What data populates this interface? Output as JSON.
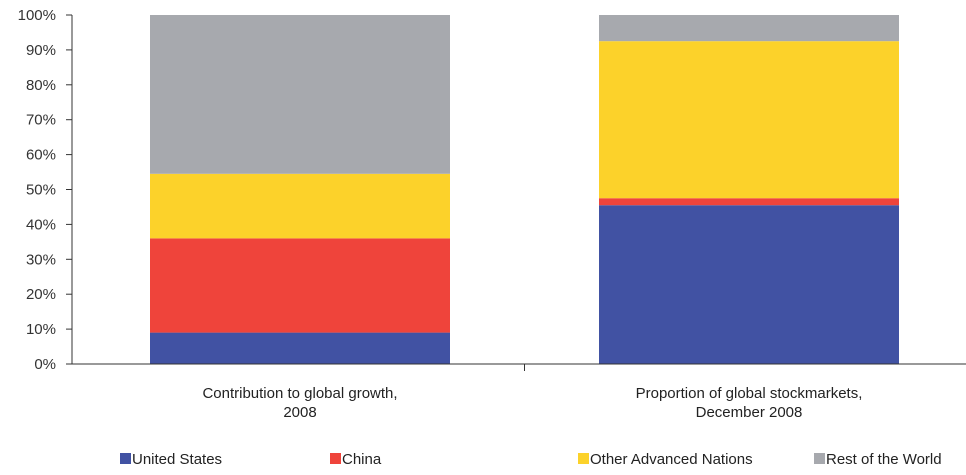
{
  "chart_data": {
    "type": "bar",
    "stacked": true,
    "categories": [
      [
        "Contribution to global growth,",
        "2008"
      ],
      [
        "Proportion of global stockmarkets,",
        "December 2008"
      ]
    ],
    "series": [
      {
        "name": "United States",
        "color": "#4152a3",
        "values": [
          9,
          45.5
        ]
      },
      {
        "name": "China",
        "color": "#ef443b",
        "values": [
          27,
          2
        ]
      },
      {
        "name": "Other Advanced Nations",
        "color": "#fcd22a",
        "values": [
          18.5,
          45
        ]
      },
      {
        "name": "Rest of the World",
        "color": "#a7a9ae",
        "values": [
          45.5,
          7.5
        ]
      }
    ],
    "ylim": [
      0,
      100
    ],
    "yticks": [
      "0%",
      "10%",
      "20%",
      "30%",
      "40%",
      "50%",
      "60%",
      "70%",
      "80%",
      "90%",
      "100%"
    ],
    "grid": false,
    "legend_position": "bottom"
  }
}
